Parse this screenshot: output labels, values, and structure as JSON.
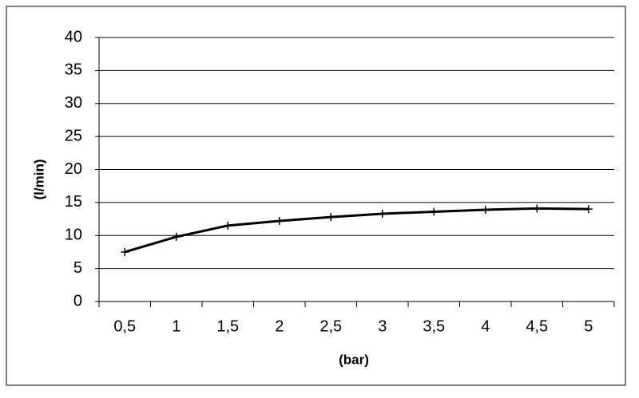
{
  "chart_data": {
    "type": "line",
    "categories": [
      "0,5",
      "1",
      "1,5",
      "2",
      "2,5",
      "3",
      "3,5",
      "4",
      "4,5",
      "5"
    ],
    "x_label": "(bar)",
    "y_label": "(l/min)",
    "series": [
      {
        "color": "#000000",
        "values": [
          7.5,
          9.8,
          11.5,
          12.2,
          12.8,
          13.3,
          13.6,
          13.9,
          14.1,
          14.0
        ]
      }
    ],
    "ylim": [
      0,
      40
    ],
    "yticks": [
      0,
      5,
      10,
      15,
      20,
      25,
      30,
      35,
      40
    ],
    "grid": true
  }
}
